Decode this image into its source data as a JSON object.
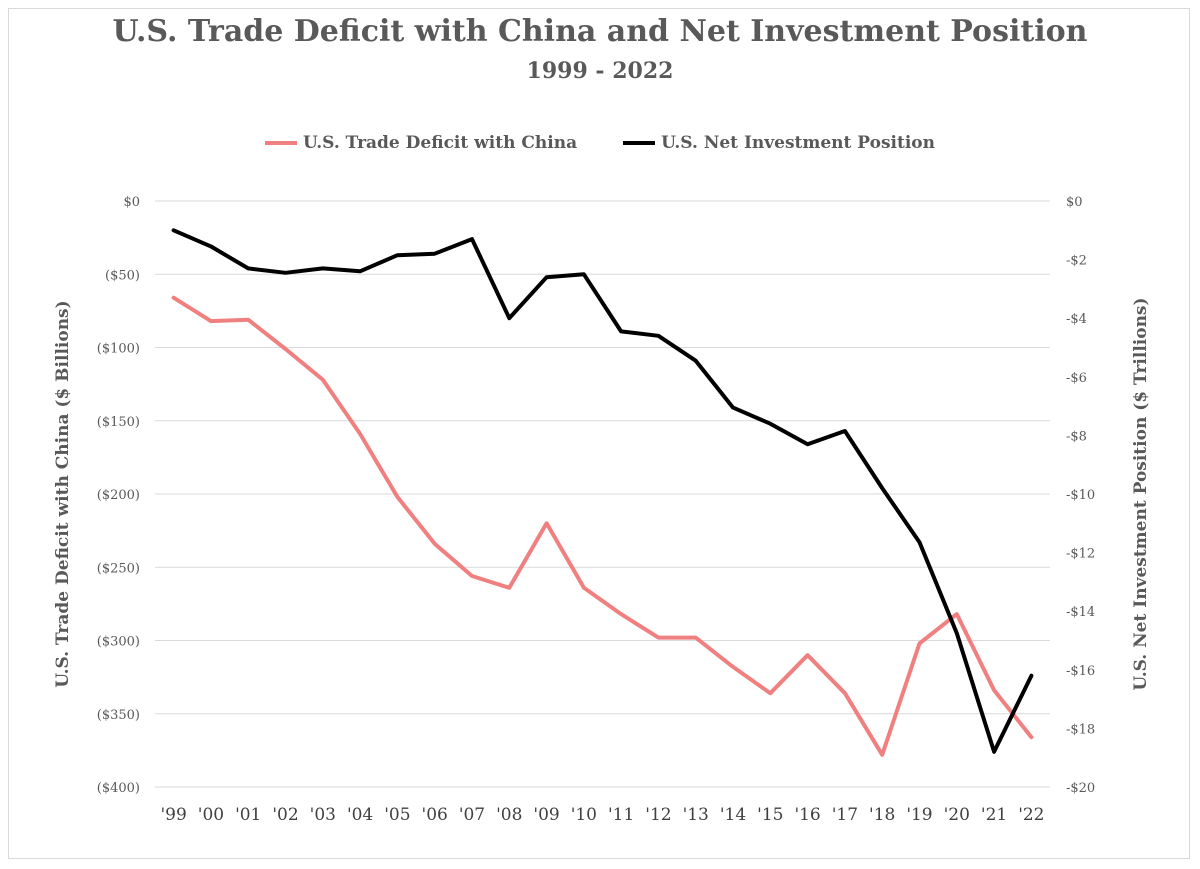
{
  "chart_data": {
    "type": "line",
    "title": "U.S. Trade Deficit with China and Net Investment Position",
    "subtitle": "1999 - 2022",
    "categories": [
      "'99",
      "'00",
      "'01",
      "'02",
      "'03",
      "'04",
      "'05",
      "'06",
      "'07",
      "'08",
      "'09",
      "'10",
      "'11",
      "'12",
      "'13",
      "'14",
      "'15",
      "'16",
      "'17",
      "'18",
      "'19",
      "'20",
      "'21",
      "'22"
    ],
    "y_left": {
      "label": "U.S. Trade Deficit with China ($ Billions)",
      "range": [
        -400,
        0
      ],
      "ticks": [
        0,
        -50,
        -100,
        -150,
        -200,
        -250,
        -300,
        -350,
        -400
      ],
      "tick_labels": [
        "$0",
        "($50)",
        "($100)",
        "($150)",
        "($200)",
        "($250)",
        "($300)",
        "($350)",
        "($400)"
      ]
    },
    "y_right": {
      "label": "U.S. Net Investment Position ($ Trillions)",
      "range": [
        -20,
        0
      ],
      "ticks": [
        0,
        -2,
        -4,
        -6,
        -8,
        -10,
        -12,
        -14,
        -16,
        -18,
        -20
      ],
      "tick_labels": [
        "$0",
        "-$2",
        "-$4",
        "-$6",
        "-$8",
        "-$10",
        "-$12",
        "-$14",
        "-$16",
        "-$18",
        "-$20"
      ]
    },
    "series": [
      {
        "name": "U.S. Trade Deficit with China",
        "axis": "left",
        "color": "#f08080",
        "values": [
          -66,
          -82,
          -81,
          -101,
          -122,
          -159,
          -202,
          -234,
          -256,
          -264,
          -220,
          -264,
          -282,
          -298,
          -298,
          -318,
          -336,
          -310,
          -336,
          -378,
          -302,
          -282,
          -334,
          -366
        ]
      },
      {
        "name": "U.S. Net Investment Position",
        "axis": "right",
        "color": "#000000",
        "values": [
          -1.0,
          -1.55,
          -2.3,
          -2.45,
          -2.3,
          -2.4,
          -1.85,
          -1.8,
          -1.3,
          -4.0,
          -2.6,
          -2.5,
          -4.45,
          -4.6,
          -5.45,
          -7.05,
          -7.6,
          -8.3,
          -7.85,
          -9.8,
          -11.65,
          -14.75,
          -18.8,
          -16.2
        ]
      }
    ],
    "grid": true,
    "legend_position": "top"
  }
}
